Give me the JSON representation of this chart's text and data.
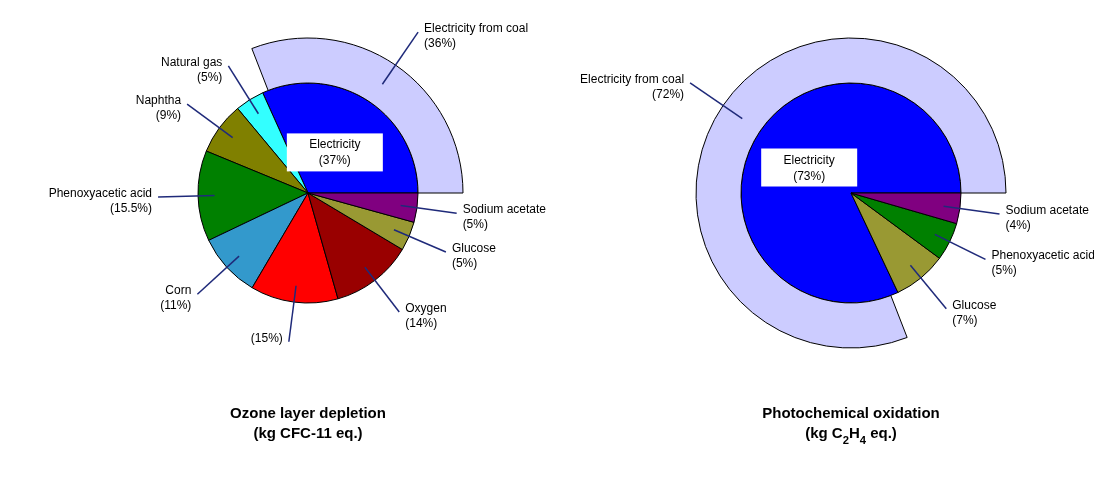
{
  "chart_data": [
    {
      "type": "pie",
      "title": "Ozone layer depletion",
      "subtitle": "(kg CFC-11 eq.)",
      "categories": [
        "Electricity",
        "Natural gas",
        "Naphtha",
        "Phenoxyacetic acid",
        "Corn",
        null,
        "Oxygen",
        "Glucose",
        "Sodium acetate"
      ],
      "series": [
        {
          "values": [
            37,
            5,
            9,
            15.5,
            11,
            15,
            14,
            5,
            5
          ],
          "colors": [
            "#0000ff",
            "#33ffff",
            "#808000",
            "#008000",
            "#3399cc",
            "#ff0000",
            "#990000",
            "#999933",
            "#800080"
          ],
          "value_labels": [
            "(37%)",
            "(5%)",
            "(9%)",
            "(15.5%)",
            "(11%)",
            "(15%)",
            "(14%)",
            "(5%)",
            "(5%)"
          ]
        },
        {
          "name": "Electricity from coal",
          "values": [
            36,
            null,
            null,
            null,
            null,
            null,
            null,
            null,
            null
          ],
          "colors": [
            "#ccccff",
            null,
            null,
            null,
            null,
            null,
            null,
            null,
            null
          ],
          "value_labels": [
            "(36%)",
            null,
            null,
            null,
            null,
            null,
            null,
            null,
            null
          ]
        }
      ]
    },
    {
      "type": "pie",
      "title": "Photochemical oxidation",
      "subtitle": "(kg C$_{2}$H$_{4}$ eq.)",
      "categories": [
        "Electricity",
        "Glucose",
        "Phenoxyacetic acid",
        "Sodium acetate"
      ],
      "series": [
        {
          "values": [
            73,
            7,
            5,
            4
          ],
          "colors": [
            "#0000ff",
            "#999933",
            "#008000",
            "#800080"
          ],
          "value_labels": [
            "(73%)",
            "(7%)",
            "(5%)",
            "(4%)"
          ]
        },
        {
          "name": "Electricity from coal",
          "values": [
            72,
            null,
            null,
            null
          ],
          "colors": [
            "#ccccff",
            null,
            null,
            null
          ],
          "value_labels": [
            "(72%)",
            null,
            null,
            null
          ]
        }
      ]
    }
  ]
}
